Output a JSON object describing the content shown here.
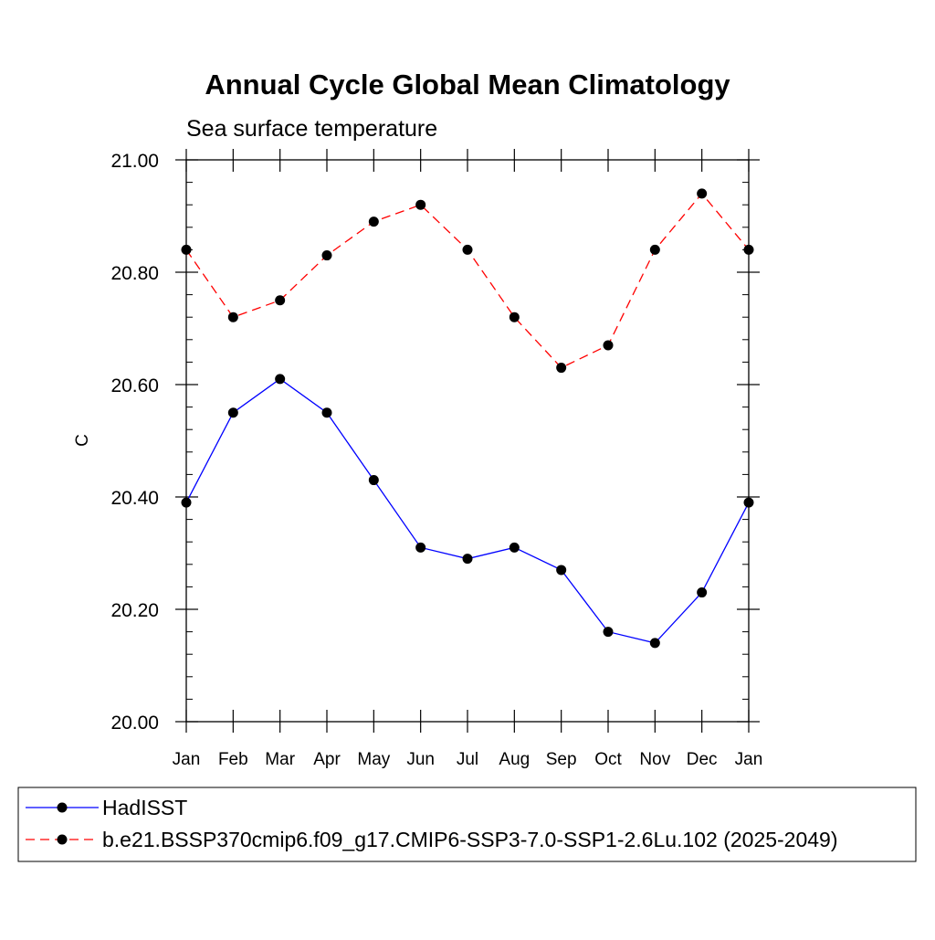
{
  "chart_data": {
    "type": "line",
    "title": "Annual Cycle Global Mean Climatology",
    "subtitle": "Sea surface temperature",
    "xlabel": "",
    "ylabel": "C",
    "ylim": [
      20.0,
      21.0
    ],
    "yticks": [
      "20.00",
      "20.20",
      "20.40",
      "20.60",
      "20.80",
      "21.00"
    ],
    "categories": [
      "Jan",
      "Feb",
      "Mar",
      "Apr",
      "May",
      "Jun",
      "Jul",
      "Aug",
      "Sep",
      "Oct",
      "Nov",
      "Dec",
      "Jan"
    ],
    "grid": false,
    "legend_position": "bottom",
    "series": [
      {
        "name": "HadISST",
        "color": "#0000ff",
        "line_style": "solid",
        "marker": "filled-circle",
        "values": [
          20.39,
          20.55,
          20.61,
          20.55,
          20.43,
          20.31,
          20.29,
          20.31,
          20.27,
          20.16,
          20.14,
          20.23,
          20.39
        ]
      },
      {
        "name": "b.e21.BSSP370cmip6.f09_g17.CMIP6-SSP3-7.0-SSP1-2.6Lu.102 (2025-2049)",
        "color": "#ff0000",
        "line_style": "dashed",
        "marker": "filled-circle",
        "values": [
          20.84,
          20.72,
          20.75,
          20.83,
          20.89,
          20.92,
          20.84,
          20.72,
          20.63,
          20.67,
          20.84,
          20.94,
          20.84
        ]
      }
    ]
  }
}
